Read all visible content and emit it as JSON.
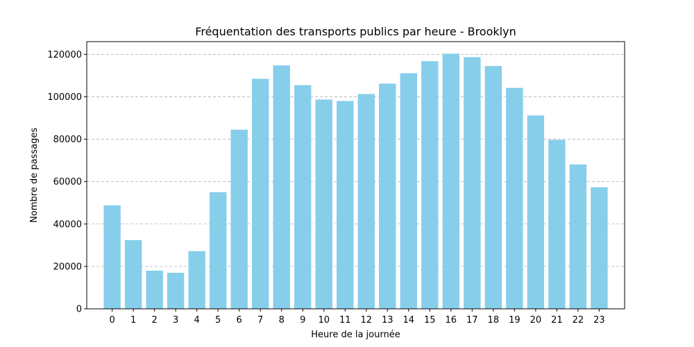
{
  "chart_data": {
    "type": "bar",
    "title": "Fréquentation des transports publics par heure - Brooklyn",
    "xlabel": "Heure de la journée",
    "ylabel": "Nombre de passages",
    "categories": [
      "0",
      "1",
      "2",
      "3",
      "4",
      "5",
      "6",
      "7",
      "8",
      "9",
      "10",
      "11",
      "12",
      "13",
      "14",
      "15",
      "16",
      "17",
      "18",
      "19",
      "20",
      "21",
      "22",
      "23"
    ],
    "values": [
      48800,
      32400,
      18000,
      17000,
      27200,
      55000,
      84500,
      108500,
      114800,
      105500,
      98700,
      98000,
      101300,
      106200,
      111100,
      116800,
      120300,
      118700,
      114500,
      104200,
      91200,
      79700,
      68100,
      57300
    ],
    "ylim": [
      0,
      126000
    ],
    "yticks": [
      0,
      20000,
      40000,
      60000,
      80000,
      100000,
      120000
    ],
    "ytick_labels": [
      "0",
      "20000",
      "40000",
      "60000",
      "80000",
      "100000",
      "120000"
    ],
    "grid": "y-dashed",
    "bar_color": "#87ceeb"
  }
}
